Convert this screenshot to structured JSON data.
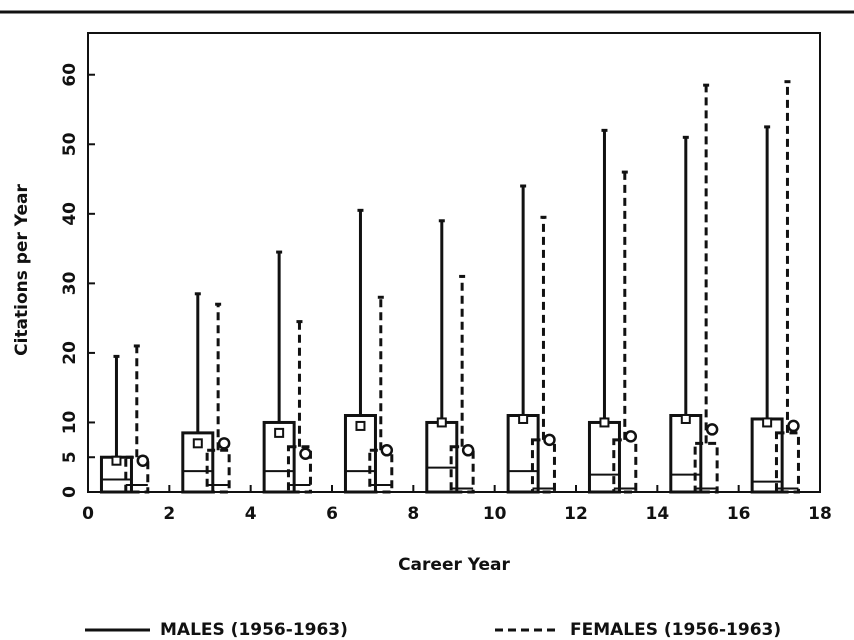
{
  "chart_data": {
    "type": "box",
    "xlabel": "Career Year",
    "ylabel": "Citations per Year",
    "xlim": [
      0,
      18
    ],
    "ylim": [
      0,
      66
    ],
    "xticks": [
      0,
      2,
      4,
      6,
      8,
      10,
      12,
      14,
      16,
      18
    ],
    "yticks": [
      0,
      5,
      10,
      20,
      30,
      40,
      50,
      60
    ],
    "series": [
      {
        "name": "MALES (1956-1963)",
        "line_style": "solid",
        "color": "#111111",
        "x": [
          0.7,
          2.7,
          4.7,
          6.7,
          8.7,
          10.7,
          12.7,
          14.7,
          16.7
        ],
        "max": [
          19.5,
          28.5,
          34.5,
          40.5,
          39,
          44,
          52,
          51,
          52.5
        ],
        "q3": [
          5,
          8.5,
          10,
          11,
          10,
          11,
          10,
          11,
          10.5
        ],
        "median": [
          1.8,
          3,
          3,
          3,
          3.5,
          3,
          2.5,
          2.5,
          1.5
        ],
        "q1": [
          0,
          0,
          0,
          0,
          0,
          0,
          0,
          0,
          0
        ],
        "mean": [
          4.5,
          7,
          8.5,
          9.5,
          10,
          10.5,
          10,
          10.5,
          10
        ]
      },
      {
        "name": "FEMALES (1956-1963)",
        "line_style": "dashed",
        "color": "#111111",
        "x": [
          1.2,
          3.2,
          5.2,
          7.2,
          9.2,
          11.2,
          13.2,
          15.2,
          17.2
        ],
        "max": [
          21,
          27,
          24.5,
          28,
          31,
          39.5,
          46,
          58.5,
          59
        ],
        "q3": [
          5,
          6,
          6.5,
          6,
          6.5,
          7.5,
          7.5,
          7,
          8.5
        ],
        "median": [
          1,
          1,
          1,
          1,
          0.5,
          0.5,
          0.5,
          0.5,
          0.5
        ],
        "q1": [
          0,
          0,
          0,
          0,
          0,
          0,
          0,
          0,
          0
        ],
        "mean": [
          4.5,
          7,
          5.5,
          6,
          6,
          7.5,
          8,
          9,
          9.5
        ]
      }
    ]
  }
}
